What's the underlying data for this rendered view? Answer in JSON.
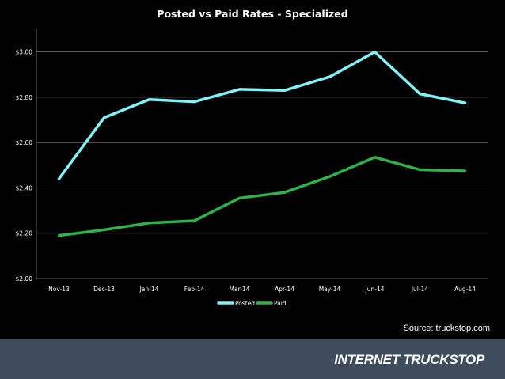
{
  "chart_data": {
    "type": "line",
    "title": "Posted vs Paid Rates - Specialized",
    "categories": [
      "Nov-13",
      "Dec-13",
      "Jan-14",
      "Feb-14",
      "Mar-14",
      "Apr-14",
      "May-14",
      "Jun-14",
      "Jul-14",
      "Aug-14"
    ],
    "series": [
      {
        "name": "Posted",
        "color": "#7ff3f7",
        "values": [
          2.44,
          2.71,
          2.79,
          2.78,
          2.835,
          2.83,
          2.89,
          3.0,
          2.815,
          2.775
        ]
      },
      {
        "name": "Paid",
        "color": "#2db34a",
        "values": [
          2.19,
          2.215,
          2.245,
          2.255,
          2.355,
          2.38,
          2.45,
          2.535,
          2.48,
          2.475
        ]
      }
    ],
    "ylim": [
      2.0,
      3.1
    ],
    "yticks": [
      2.0,
      2.2,
      2.4,
      2.6,
      2.8,
      3.0
    ],
    "ytick_labels": [
      "$2.00",
      "$2.20",
      "$2.40",
      "$2.60",
      "$2.80",
      "$3.00"
    ],
    "grid": true,
    "legend_position": "bottom-center",
    "xlabel": "",
    "ylabel": ""
  },
  "source_note": "Source: truckstop.com",
  "logo_text": "INTERNET TRUCKSTOP",
  "colors": {
    "background": "#000000",
    "footer": "#3e4c5c",
    "grid": "#7f7f7f"
  }
}
